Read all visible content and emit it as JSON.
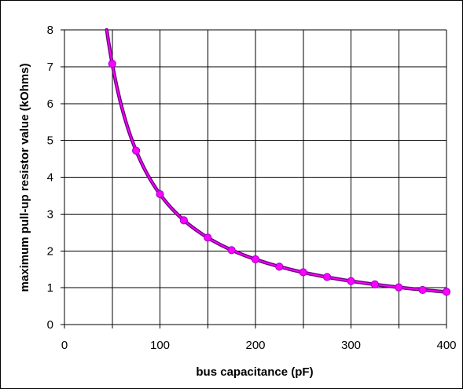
{
  "chart_data": {
    "type": "line",
    "title": "",
    "xlabel": "bus capacitance (pF)",
    "ylabel": "maximum pull-up resistor value (kOhms)",
    "xlim": [
      0,
      400
    ],
    "ylim": [
      0,
      8
    ],
    "x_ticks": [
      0,
      100,
      200,
      300,
      400
    ],
    "y_ticks": [
      0,
      1,
      2,
      3,
      4,
      5,
      6,
      7,
      8
    ],
    "x_tick_labels": [
      "0",
      "100",
      "200",
      "300",
      "400"
    ],
    "y_tick_labels": [
      "0",
      "1",
      "2",
      "3",
      "4",
      "5",
      "6",
      "7",
      "8"
    ],
    "grid": true,
    "legend": "none",
    "series": [
      {
        "x": [
          50,
          75,
          100,
          125,
          150,
          175,
          200,
          225,
          250,
          275,
          300,
          325,
          350,
          375,
          400
        ],
        "values": [
          7.08,
          4.72,
          3.54,
          2.83,
          2.36,
          2.02,
          1.77,
          1.57,
          1.42,
          1.29,
          1.18,
          1.09,
          1.01,
          0.94,
          0.89
        ],
        "color": "#ff00ff",
        "line_color": "#7f00a8",
        "marker": "circle"
      }
    ],
    "curve": {
      "formula": "354/x",
      "x_start": 44.25
    },
    "colors": {
      "background": "#ffffff",
      "grid": "#000000",
      "axis": "#000000",
      "curve_outline": "#6a007f",
      "curve_core": "#ff00ff",
      "marker_fill": "#ff00ff",
      "marker_stroke": "#9900cc"
    }
  }
}
